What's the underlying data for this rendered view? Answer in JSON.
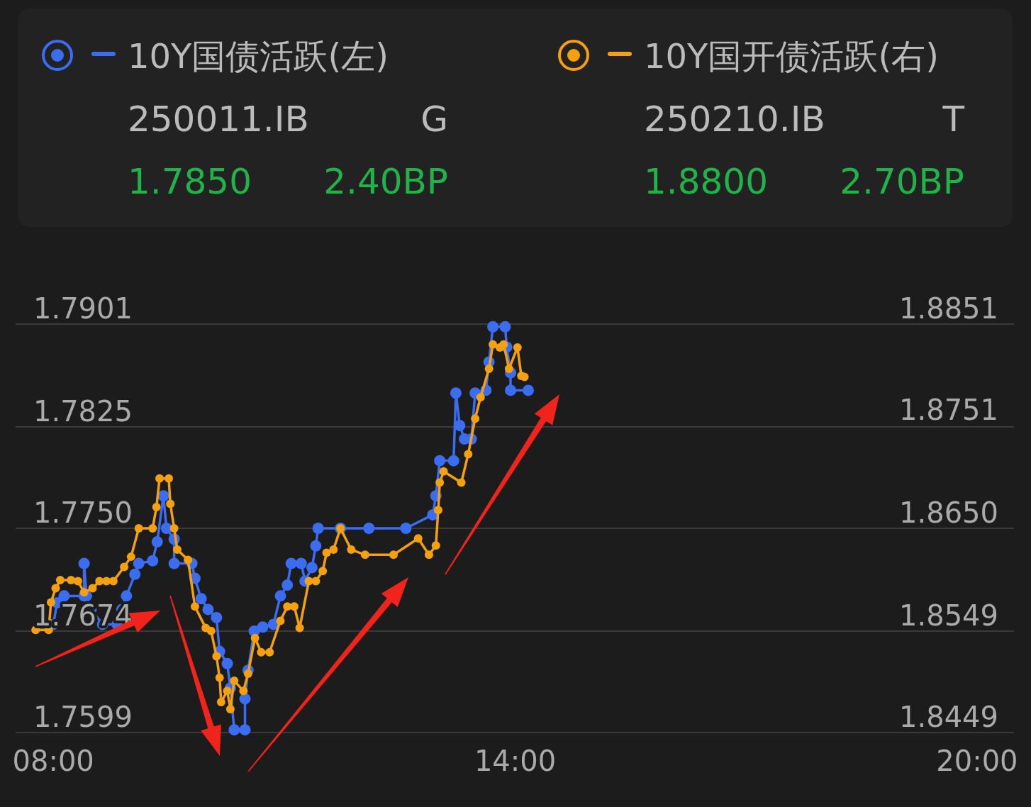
{
  "chart_data": {
    "type": "line",
    "xlim": [
      7.51,
      20.48
    ],
    "xticks": [
      {
        "value": 8,
        "label": "08:00"
      },
      {
        "value": 14,
        "label": "14:00"
      },
      {
        "value": 20,
        "label": "20:00"
      }
    ],
    "ylim": [
      1.7599,
      1.7901
    ],
    "yticks": [
      1.7599,
      1.7674,
      {
        "value": 1.775,
        "label": "1.7750"
      },
      1.7825,
      1.7901
    ],
    "y2lim": [
      1.8449,
      1.8851
    ],
    "y2ticks": [
      1.8449,
      1.8549,
      {
        "value": 1.865,
        "label": "1.8650"
      },
      1.8751,
      1.8851
    ],
    "grid": "y",
    "legend": "top",
    "marker": "circle",
    "line_style": "solid",
    "annotations": [
      "250011.IB",
      "G",
      "1.7850",
      "2.40BP",
      "250210.IB",
      "T",
      "1.8800",
      "2.70BP"
    ],
    "series": [
      {
        "name": "10Y国债活跃(左)",
        "color": "#3a6df0",
        "axis": "y",
        "x": [
          8.0,
          8.05,
          8.14,
          8.4,
          8.4,
          8.43,
          8.49,
          8.64,
          8.83,
          8.89,
          8.95,
          9.06,
          9.11,
          9.29,
          9.35,
          9.43,
          9.47,
          9.57,
          9.57,
          9.8,
          9.84,
          9.92,
          10.01,
          10.12,
          10.16,
          10.26,
          10.3,
          10.35,
          10.49,
          10.49,
          10.53,
          10.61,
          10.72,
          10.86,
          10.95,
          11.04,
          11.09,
          11.22,
          11.27,
          11.36,
          11.41,
          11.44,
          11.73,
          12.1,
          12.58,
          12.93,
          12.97,
          13.02,
          13.2,
          13.23,
          13.28,
          13.34,
          13.43,
          13.48,
          13.62,
          13.66,
          13.71,
          13.87,
          13.89,
          13.94,
          13.94,
          14.17
        ],
        "values": [
          1.7679,
          1.7695,
          1.77,
          1.77,
          1.7724,
          1.77,
          1.769,
          1.7679,
          1.7679,
          1.769,
          1.77,
          1.7716,
          1.7724,
          1.7726,
          1.774,
          1.7774,
          1.775,
          1.7742,
          1.7724,
          1.7724,
          1.7713,
          1.7698,
          1.769,
          1.7684,
          1.7659,
          1.765,
          1.7632,
          1.7601,
          1.7601,
          1.7624,
          1.7645,
          1.7674,
          1.7677,
          1.7679,
          1.77,
          1.7708,
          1.7724,
          1.7724,
          1.7711,
          1.7721,
          1.7737,
          1.775,
          1.775,
          1.775,
          1.775,
          1.776,
          1.7774,
          1.78,
          1.78,
          1.785,
          1.7826,
          1.7816,
          1.7816,
          1.785,
          1.7852,
          1.7873,
          1.7899,
          1.7899,
          1.7884,
          1.7865,
          1.7852,
          1.7852
        ]
      },
      {
        "name": "10Y国开债活跃(右)",
        "color": "#f5a00f",
        "axis": "y2",
        "x": [
          7.77,
          7.94,
          7.97,
          8.03,
          8.09,
          8.23,
          8.32,
          8.4,
          8.51,
          8.6,
          8.69,
          8.78,
          8.92,
          9.01,
          9.11,
          9.29,
          9.34,
          9.38,
          9.5,
          9.52,
          9.57,
          9.61,
          9.75,
          9.84,
          9.98,
          10.05,
          10.12,
          10.16,
          10.18,
          10.26,
          10.3,
          10.35,
          10.47,
          10.53,
          10.62,
          10.7,
          10.81,
          10.95,
          11.04,
          11.13,
          11.2,
          11.32,
          11.41,
          11.5,
          11.55,
          11.64,
          11.73,
          11.87,
          12.05,
          12.42,
          12.74,
          12.88,
          12.97,
          13.0,
          13.02,
          13.07,
          13.3,
          13.39,
          13.48,
          13.55,
          13.66,
          13.71,
          13.8,
          13.85,
          13.92,
          14.03,
          14.08,
          14.12
        ],
        "values": [
          1.855,
          1.855,
          1.8577,
          1.8591,
          1.8599,
          1.8599,
          1.8598,
          1.8587,
          1.8591,
          1.8598,
          1.8598,
          1.8598,
          1.8612,
          1.8622,
          1.865,
          1.865,
          1.8671,
          1.8699,
          1.8699,
          1.8674,
          1.865,
          1.8629,
          1.8619,
          1.8573,
          1.8552,
          1.8549,
          1.8524,
          1.8503,
          1.8479,
          1.849,
          1.8472,
          1.85,
          1.849,
          1.8507,
          1.8542,
          1.8528,
          1.8528,
          1.8559,
          1.8573,
          1.8573,
          1.8552,
          1.8598,
          1.8598,
          1.8608,
          1.8626,
          1.8629,
          1.865,
          1.8629,
          1.8624,
          1.8624,
          1.864,
          1.8624,
          1.8633,
          1.8668,
          1.8695,
          1.8706,
          1.8695,
          1.8723,
          1.8758,
          1.8779,
          1.8807,
          1.8831,
          1.8828,
          1.8831,
          1.8807,
          1.8828,
          1.88,
          1.8799
        ]
      }
    ]
  }
}
